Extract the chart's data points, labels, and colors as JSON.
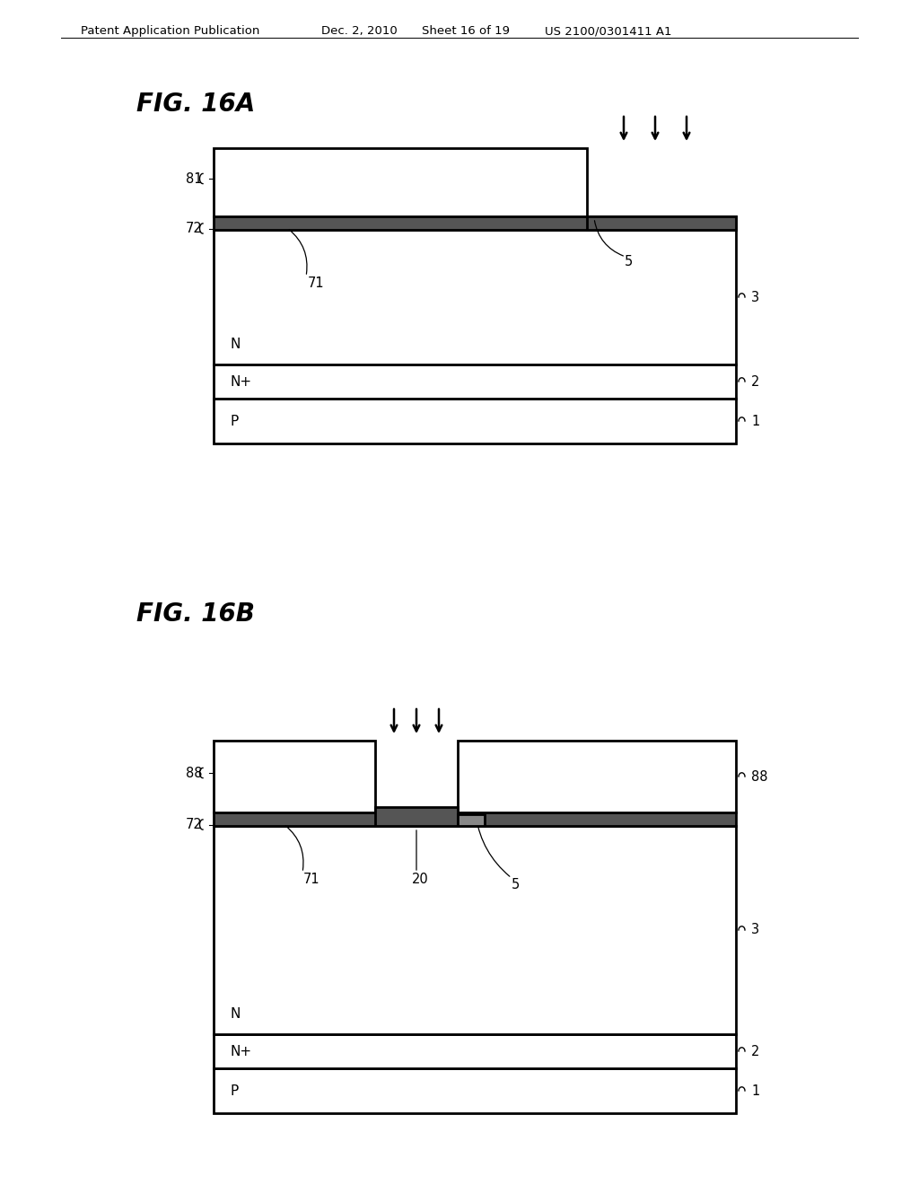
{
  "bg_color": "#ffffff",
  "header_text": "Patent Application Publication",
  "header_date": "Dec. 2, 2010",
  "header_sheet": "Sheet 16 of 19",
  "header_patent": "US 2100/0301411 A1",
  "figA_title": "FIG. 16A",
  "figB_title": "FIG. 16B",
  "line_color": "#000000",
  "lw": 1.5,
  "lw_thick": 2.0,
  "lw_ox": 3.5
}
